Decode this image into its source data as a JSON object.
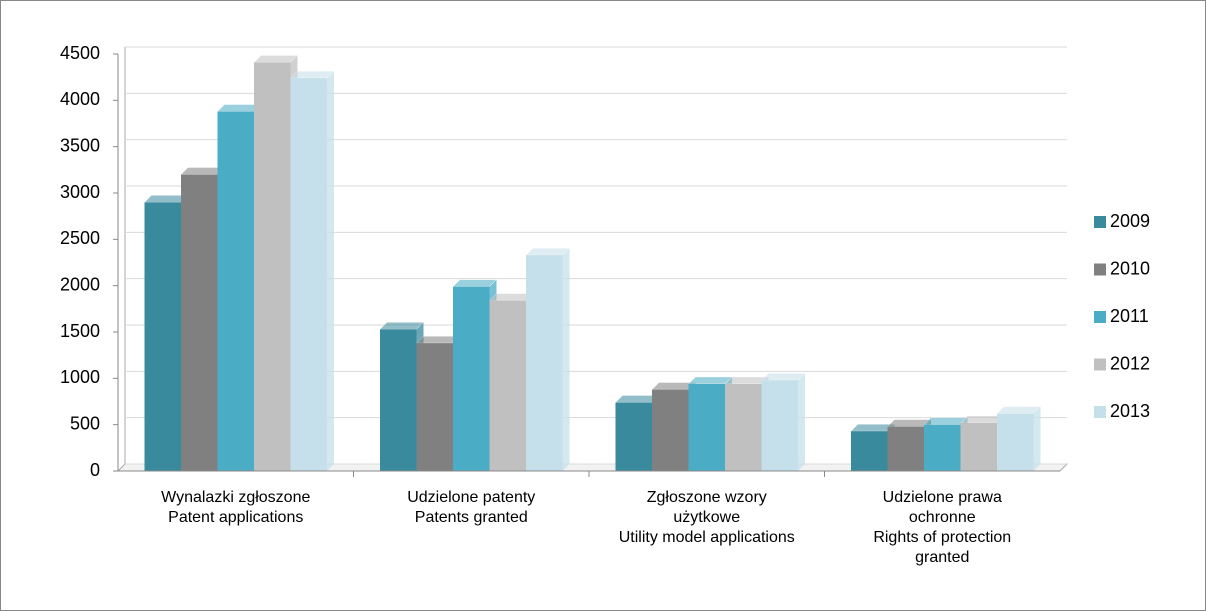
{
  "chart_data": {
    "type": "bar",
    "categories": [
      [
        "Wynalazki zgłoszone",
        "Patent applications"
      ],
      [
        "Udzielone patenty",
        "Patents granted"
      ],
      [
        "Zgłoszone wzory",
        "użytkowe",
        "Utility model applications"
      ],
      [
        "Udzielone prawa",
        "ochronne",
        "Rights of protection",
        "granted"
      ]
    ],
    "series": [
      {
        "name": "2009",
        "color": "#3a8a9e",
        "values": [
          2900,
          1530,
          740,
          430
        ]
      },
      {
        "name": "2010",
        "color": "#808080",
        "values": [
          3200,
          1380,
          880,
          480
        ]
      },
      {
        "name": "2011",
        "color": "#4bacc6",
        "values": [
          3880,
          1990,
          940,
          500
        ]
      },
      {
        "name": "2012",
        "color": "#c0c0c0",
        "values": [
          4410,
          1840,
          940,
          520
        ]
      },
      {
        "name": "2013",
        "color": "#c5e0ea",
        "values": [
          4240,
          2330,
          980,
          620
        ]
      }
    ],
    "ylim": [
      0,
      4500
    ],
    "yticks": [
      0,
      500,
      1000,
      1500,
      2000,
      2500,
      3000,
      3500,
      4000,
      4500
    ],
    "grid": true,
    "legend": "right"
  }
}
